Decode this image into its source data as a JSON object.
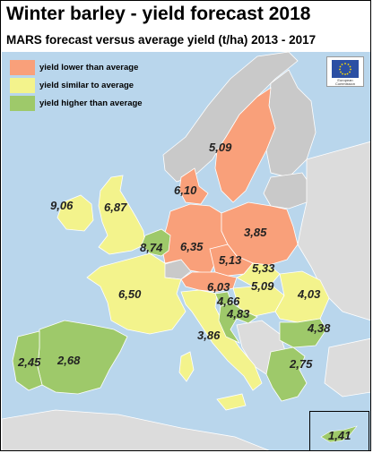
{
  "title": "Winter barley - yield forecast 2018",
  "subtitle": "MARS forecast versus average yield (t/ha) 2013 - 2017",
  "colors": {
    "sea": "#b9d6ec",
    "lower": "#f9a07a",
    "similar": "#f3f38c",
    "higher": "#9ec96a",
    "no_data": "#c9c9c9",
    "non_eu": "#dcdcdc"
  },
  "legend": [
    {
      "key": "lower",
      "label": "yield lower than average"
    },
    {
      "key": "similar",
      "label": "yield similar to average"
    },
    {
      "key": "higher",
      "label": "yield higher than average"
    }
  ],
  "logo": {
    "caption": "European Commission"
  },
  "values": {
    "ireland": "9,06",
    "uk": "6,87",
    "denmark": "6,10",
    "sweden": "5,09",
    "benelux": "8,74",
    "germany": "6,35",
    "poland": "3,85",
    "czechia": "5,13",
    "france": "6,50",
    "slovakia": "5,33",
    "austria": "6,03",
    "hungary": "5,09",
    "romania": "4,03",
    "slovenia": "4,66",
    "croatia": "4,83",
    "italy": "3,86",
    "bulgaria": "4,38",
    "portugal": "2,45",
    "spain": "2,68",
    "greece": "2,75",
    "cyprus": "1,41"
  }
}
